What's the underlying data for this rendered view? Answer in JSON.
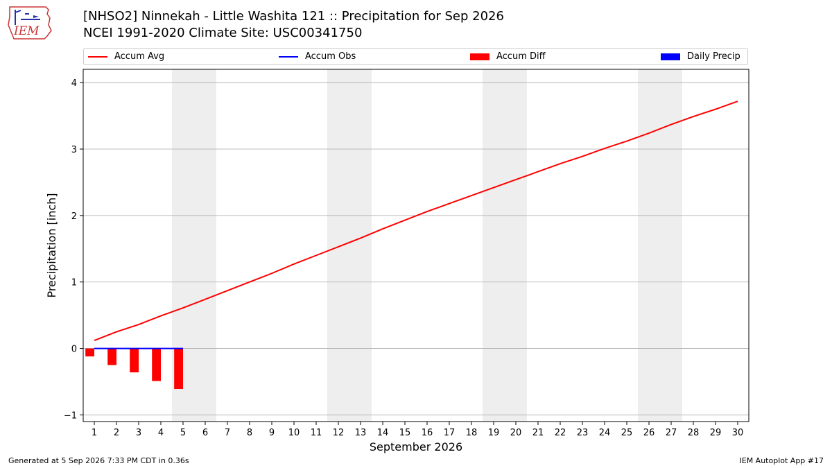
{
  "header": {
    "logo_text": "IEM",
    "title_line1": "[NHSO2] Ninnekah - Little Washita 121 :: Precipitation for Sep 2026",
    "title_line2": "NCEI 1991-2020 Climate Site: USC00341750"
  },
  "legend": {
    "accum_avg": "Accum Avg",
    "accum_obs": "Accum Obs",
    "accum_diff": "Accum Diff",
    "daily_precip": "Daily Precip"
  },
  "colors": {
    "accum_avg": "#ff0000",
    "accum_obs": "#0000ff",
    "accum_diff": "#ff0000",
    "daily_precip": "#0000ff",
    "weekend_shade": "#eeeeee",
    "grid": "#aaaaaa"
  },
  "chart_data": {
    "type": "line",
    "xlabel": "September 2026",
    "ylabel": "Precipitation [inch]",
    "xlim": [
      0.5,
      30.5
    ],
    "ylim": [
      -1.1,
      4.2
    ],
    "yticks": [
      -1,
      0,
      1,
      2,
      3,
      4
    ],
    "xticks": [
      1,
      2,
      3,
      4,
      5,
      6,
      7,
      8,
      9,
      10,
      11,
      12,
      13,
      14,
      15,
      16,
      17,
      18,
      19,
      20,
      21,
      22,
      23,
      24,
      25,
      26,
      27,
      28,
      29,
      30
    ],
    "grid": "horizontal",
    "legend_position": "top",
    "weekend_spans": [
      [
        5,
        6
      ],
      [
        12,
        13
      ],
      [
        19,
        20
      ],
      [
        26,
        27
      ]
    ],
    "series": [
      {
        "name": "Accum Avg",
        "type": "line",
        "x": [
          1,
          2,
          3,
          4,
          5,
          6,
          7,
          8,
          9,
          10,
          11,
          12,
          13,
          14,
          15,
          16,
          17,
          18,
          19,
          20,
          21,
          22,
          23,
          24,
          25,
          26,
          27,
          28,
          29,
          30
        ],
        "values": [
          0.12,
          0.25,
          0.36,
          0.49,
          0.61,
          0.74,
          0.87,
          1.0,
          1.13,
          1.27,
          1.4,
          1.53,
          1.66,
          1.8,
          1.93,
          2.06,
          2.18,
          2.3,
          2.42,
          2.54,
          2.66,
          2.78,
          2.89,
          3.01,
          3.12,
          3.24,
          3.37,
          3.49,
          3.6,
          3.72
        ]
      },
      {
        "name": "Accum Obs",
        "type": "line",
        "x": [
          1,
          2,
          3,
          4,
          5
        ],
        "values": [
          0.0,
          0.0,
          0.0,
          0.0,
          0.0
        ]
      },
      {
        "name": "Accum Diff",
        "type": "bar",
        "x": [
          1,
          2,
          3,
          4,
          5
        ],
        "values": [
          -0.12,
          -0.25,
          -0.36,
          -0.49,
          -0.61
        ]
      },
      {
        "name": "Daily Precip",
        "type": "bar",
        "x": [
          1,
          2,
          3,
          4,
          5
        ],
        "values": [
          0.0,
          0.0,
          0.0,
          0.0,
          0.0
        ]
      }
    ]
  },
  "footer": {
    "left": "Generated at 5 Sep 2026 7:33 PM CDT in 0.36s",
    "right": "IEM Autoplot App #17"
  }
}
